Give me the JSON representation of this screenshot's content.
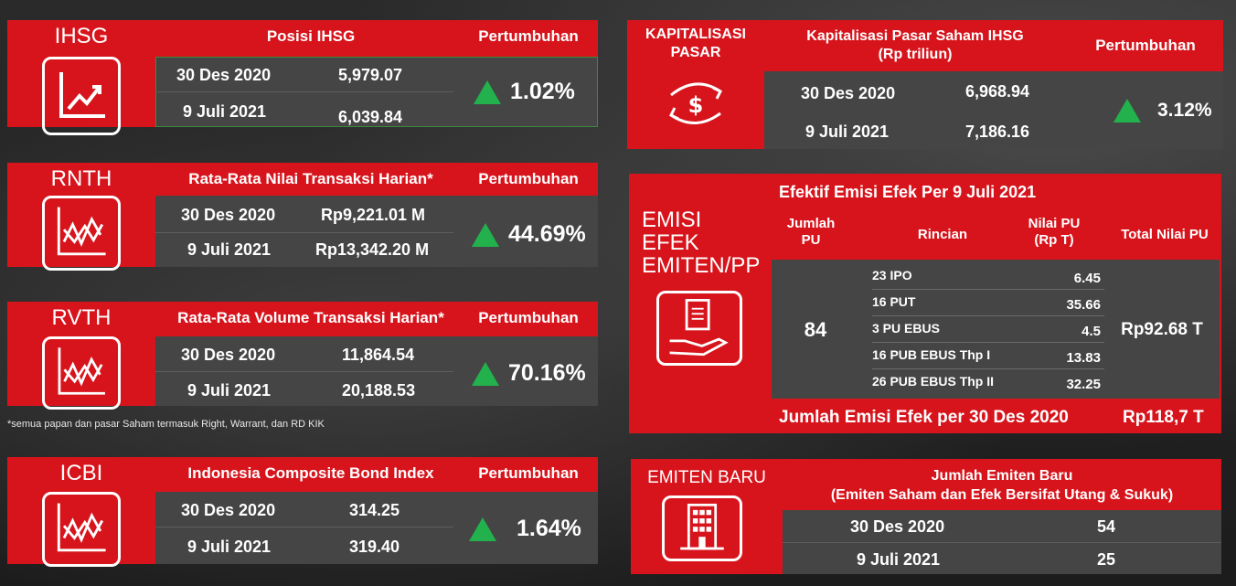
{
  "colors": {
    "accent_red": "#d7141c",
    "panel_gray": "#454545",
    "up_green": "#22b14c"
  },
  "ihsg": {
    "label": "IHSG",
    "header": "Posisi IHSG",
    "growth_header": "Pertumbuhan",
    "rows": [
      {
        "date": "30 Des 2020",
        "value": "5,979.07"
      },
      {
        "date": "9 Juli 2021",
        "value": "6,039.84"
      }
    ],
    "growth": "1.02%"
  },
  "rnth": {
    "label": "RNTH",
    "header": "Rata-Rata Nilai Transaksi Harian*",
    "growth_header": "Pertumbuhan",
    "rows": [
      {
        "date": "30 Des 2020",
        "value": "Rp9,221.01 M"
      },
      {
        "date": "9 Juli 2021",
        "value": "Rp13,342.20 M"
      }
    ],
    "growth": "44.69%"
  },
  "rvth": {
    "label": "RVTH",
    "header": "Rata-Rata Volume Transaksi Harian*",
    "growth_header": "Pertumbuhan",
    "rows": [
      {
        "date": "30 Des 2020",
        "value": "11,864.54"
      },
      {
        "date": "9 Juli 2021",
        "value": "20,188.53"
      }
    ],
    "growth": "70.16%"
  },
  "footnote": "*semua papan dan pasar Saham termasuk Right, Warrant, dan RD KIK",
  "icbi": {
    "label": "ICBI",
    "header": "Indonesia Composite Bond Index",
    "growth_header": "Pertumbuhan",
    "rows": [
      {
        "date": "30 Des 2020",
        "value": "314.25"
      },
      {
        "date": "9 Juli 2021",
        "value": "319.40"
      }
    ],
    "growth": "1.64%"
  },
  "kapitalisasi": {
    "label_line1": "KAPITALISASI",
    "label_line2": "PASAR",
    "header_line1": "Kapitalisasi Pasar Saham IHSG",
    "header_line2": "(Rp triliun)",
    "growth_header": "Pertumbuhan",
    "rows": [
      {
        "date": "30 Des 2020",
        "value": "6,968.94"
      },
      {
        "date": "9 Juli 2021",
        "value": "7,186.16"
      }
    ],
    "growth": "3.12%"
  },
  "emisi": {
    "label_line1": "EMISI",
    "label_line2": "EFEK",
    "label_line3": "EMITEN/PP",
    "title": "Efektif Emisi Efek Per 9 Juli 2021",
    "col_jumlah": "Jumlah\nPU",
    "col_rincian": "Rincian",
    "col_nilai": "Nilai PU\n(Rp T)",
    "col_total": "Total Nilai PU",
    "jumlah": "84",
    "items": [
      {
        "name": "23 IPO",
        "value": "6.45"
      },
      {
        "name": "16 PUT",
        "value": "35.66"
      },
      {
        "name": "3 PU EBUS",
        "value": "4.5"
      },
      {
        "name": "16 PUB EBUS Thp I",
        "value": "13.83"
      },
      {
        "name": "26 PUB EBUS Thp II",
        "value": "32.25"
      }
    ],
    "total": "Rp92.68 T",
    "footer_label": "Jumlah Emisi Efek per 30 Des 2020",
    "footer_value": "Rp118,7 T"
  },
  "emiten_baru": {
    "label": "EMITEN BARU",
    "header_line1": "Jumlah Emiten Baru",
    "header_line2": "(Emiten Saham dan Efek Bersifat Utang & Sukuk)",
    "rows": [
      {
        "date": "30 Des 2020",
        "value": "54"
      },
      {
        "date": "9 Juli 2021",
        "value": "25"
      }
    ]
  },
  "icons": [
    "line-chart-icon",
    "volatility-chart-icon",
    "money-exchange-icon",
    "document-hand-icon",
    "building-icon",
    "up-arrow-icon"
  ]
}
